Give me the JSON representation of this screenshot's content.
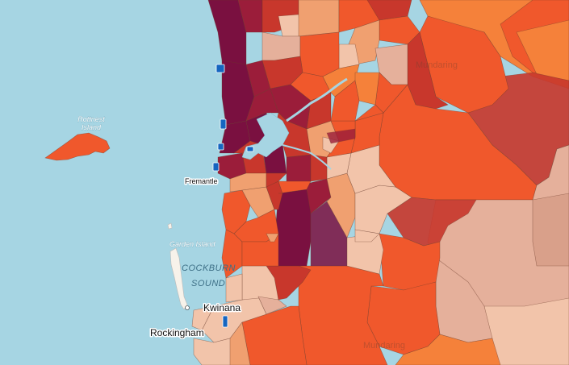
{
  "map": {
    "water_labels": [
      "COCKBURN",
      "SOUND"
    ],
    "islands": {
      "rottnest": [
        "Rottnest",
        "Island"
      ],
      "garden": "Garden Island"
    },
    "places": {
      "fremantle": "Fremantle",
      "kwinana": "Kwinana",
      "rockingham": "Rockingham"
    },
    "faint_labels": [
      "Mundaring",
      "Mundaring"
    ],
    "colors": {
      "water": "#a6d5e3",
      "darkest": "#7a1040",
      "dark": "#9b1d3a",
      "red": "#c8372c",
      "orange_red": "#f0582c",
      "orange": "#f5813a",
      "light_orange": "#f0a070",
      "pale": "#f2c4aa",
      "dusty_rose": "#d9a08a"
    }
  }
}
